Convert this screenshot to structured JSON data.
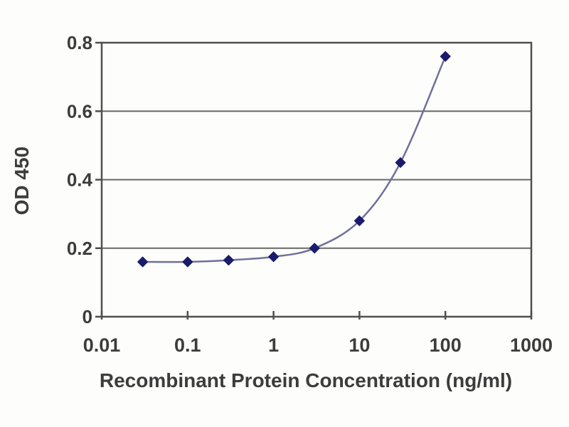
{
  "chart_data": {
    "type": "line",
    "title": "",
    "xlabel": "Recombinant Protein Concentration (ng/ml)",
    "ylabel": "OD 450",
    "x_scale": "log",
    "xlim": [
      0.01,
      1000
    ],
    "ylim": [
      0,
      0.8
    ],
    "x": [
      0.03,
      0.1,
      0.3,
      1,
      3,
      10,
      30,
      100
    ],
    "y": [
      0.16,
      0.16,
      0.165,
      0.175,
      0.2,
      0.28,
      0.45,
      0.76
    ],
    "x_ticks": [
      0.01,
      0.1,
      1,
      10,
      100,
      1000
    ],
    "x_tick_labels": [
      "0.01",
      "0.1",
      "1",
      "10",
      "100",
      "1000"
    ],
    "y_ticks": [
      0,
      0.2,
      0.4,
      0.6,
      0.8
    ],
    "y_tick_labels": [
      "0",
      "0.2",
      "0.4",
      "0.6",
      "0.8"
    ],
    "grid": "horizontal",
    "legend": "none",
    "marker_shape": "diamond",
    "colors": {
      "line": "#70709a",
      "marker": "#1b1b6b",
      "grid": "#686868",
      "frame": "#4f4f4f",
      "text": "#3c3c3c",
      "background": "#fdfdfb"
    }
  }
}
